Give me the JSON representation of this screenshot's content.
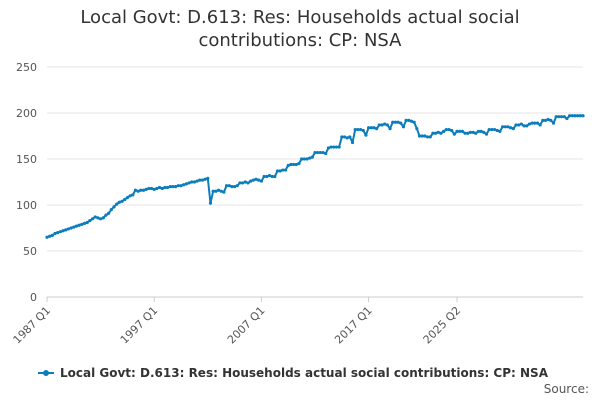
{
  "title_lines": [
    "Local Govt: D.613: Res: Households actual social",
    "contributions: CP: NSA"
  ],
  "legend_label": "Local Govt: D.613: Res: Households actual social contributions: CP: NSA",
  "source_label": "Source:",
  "colors": {
    "series": "#0b7dbd",
    "grid": "#e6e6e6",
    "axis": "#cccccc",
    "text": "#555555"
  },
  "chart_data": {
    "type": "line",
    "title": "Local Govt: D.613: Res: Households actual social contributions: CP: NSA",
    "x_start": "1987 Q1",
    "x_end": "2025 Q2",
    "x_tick_labels": [
      "1987 Q1",
      "1997 Q1",
      "2007 Q1",
      "2017 Q1",
      "2025 Q2"
    ],
    "ylim": [
      0,
      250
    ],
    "y_ticks": [
      0,
      50,
      100,
      150,
      200,
      250
    ],
    "legend_position": "bottom",
    "series": [
      {
        "name": "Local Govt: D.613: Res: Households actual social contributions: CP: NSA",
        "values": [
          65,
          66,
          67,
          69,
          70,
          71,
          72,
          73,
          74,
          75,
          76,
          77,
          78,
          79,
          80,
          81,
          83,
          85,
          87,
          86,
          85,
          86,
          89,
          91,
          95,
          98,
          101,
          103,
          104,
          106,
          108,
          110,
          111,
          116,
          115,
          116,
          116,
          117,
          118,
          118,
          117,
          118,
          119,
          118,
          119,
          119,
          120,
          120,
          120,
          121,
          121,
          122,
          123,
          124,
          125,
          125,
          126,
          127,
          127,
          128,
          129,
          102,
          115,
          115,
          116,
          115,
          114,
          121,
          121,
          120,
          120,
          121,
          124,
          124,
          125,
          124,
          126,
          127,
          128,
          127,
          126,
          131,
          131,
          132,
          131,
          131,
          137,
          137,
          138,
          138,
          143,
          144,
          144,
          144,
          145,
          150,
          150,
          150,
          151,
          152,
          157,
          157,
          157,
          157,
          156,
          162,
          163,
          163,
          163,
          163,
          174,
          174,
          173,
          174,
          168,
          182,
          182,
          182,
          181,
          176,
          184,
          184,
          184,
          183,
          187,
          187,
          188,
          187,
          183,
          190,
          190,
          190,
          189,
          185,
          192,
          192,
          191,
          190,
          183,
          175,
          175,
          175,
          174,
          174,
          178,
          178,
          179,
          178,
          180,
          182,
          182,
          181,
          177,
          180,
          180,
          180,
          178,
          178,
          179,
          179,
          178,
          180,
          180,
          179,
          177,
          182,
          182,
          182,
          181,
          180,
          185,
          185,
          185,
          184,
          183,
          187,
          187,
          188,
          186,
          186,
          188,
          189,
          189,
          189,
          187,
          192,
          192,
          193,
          192,
          189,
          196,
          196,
          196,
          196,
          194,
          197,
          197,
          197,
          197,
          197,
          197
        ]
      }
    ]
  }
}
